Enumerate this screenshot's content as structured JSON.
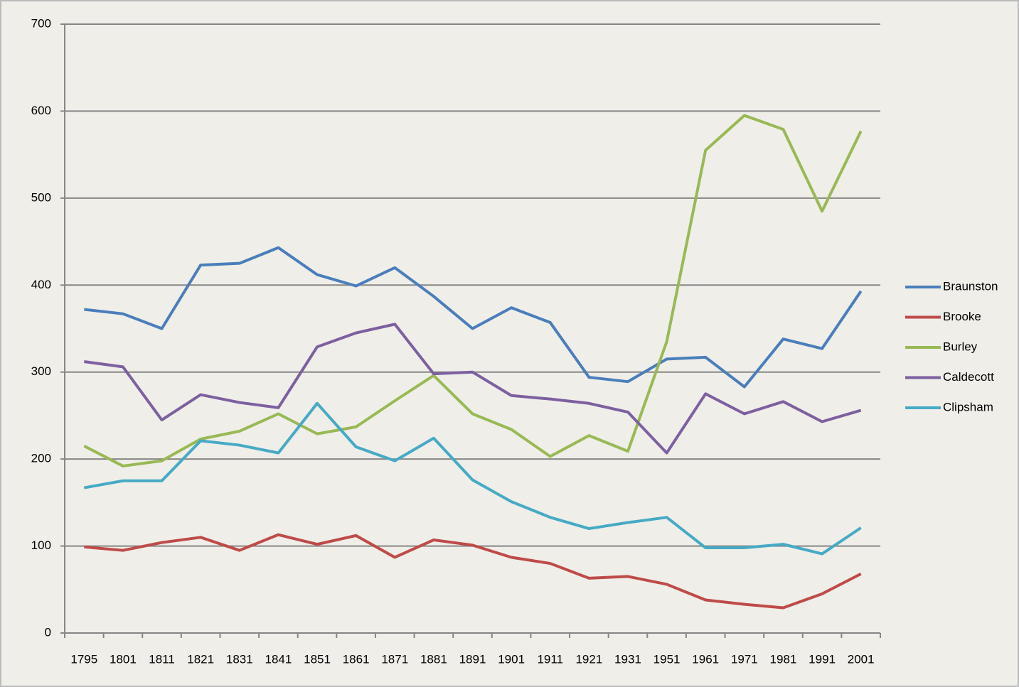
{
  "chart_data": {
    "type": "line",
    "categories": [
      "1795",
      "1801",
      "1811",
      "1821",
      "1831",
      "1841",
      "1851",
      "1861",
      "1871",
      "1881",
      "1891",
      "1901",
      "1911",
      "1921",
      "1931",
      "1951",
      "1961",
      "1971",
      "1981",
      "1991",
      "2001"
    ],
    "series": [
      {
        "name": "Braunston",
        "color": "#4a7ebb",
        "values": [
          372,
          367,
          350,
          423,
          425,
          443,
          412,
          399,
          420,
          387,
          350,
          374,
          357,
          294,
          289,
          315,
          317,
          283,
          338,
          327,
          393
        ]
      },
      {
        "name": "Brooke",
        "color": "#be4b48",
        "values": [
          99,
          95,
          104,
          110,
          95,
          113,
          102,
          112,
          87,
          107,
          101,
          87,
          80,
          63,
          65,
          56,
          38,
          33,
          29,
          45,
          68
        ]
      },
      {
        "name": "Burley",
        "color": "#98b954",
        "values": [
          215,
          192,
          198,
          223,
          232,
          252,
          229,
          237,
          267,
          296,
          252,
          234,
          203,
          227,
          209,
          335,
          555,
          595,
          579,
          485,
          577
        ]
      },
      {
        "name": "Caldecott",
        "color": "#7d60a0",
        "values": [
          312,
          306,
          245,
          274,
          265,
          259,
          329,
          345,
          355,
          298,
          300,
          273,
          269,
          264,
          254,
          207,
          275,
          252,
          266,
          243,
          256
        ]
      },
      {
        "name": "Clipsham",
        "color": "#46aac5",
        "values": [
          167,
          175,
          175,
          221,
          216,
          207,
          264,
          214,
          198,
          224,
          176,
          151,
          133,
          120,
          127,
          133,
          98,
          98,
          102,
          91,
          121
        ]
      }
    ],
    "ylim": [
      0,
      700
    ],
    "yticks": [
      0,
      100,
      200,
      300,
      400,
      500,
      600,
      700
    ],
    "grid": true,
    "legend": "right"
  }
}
